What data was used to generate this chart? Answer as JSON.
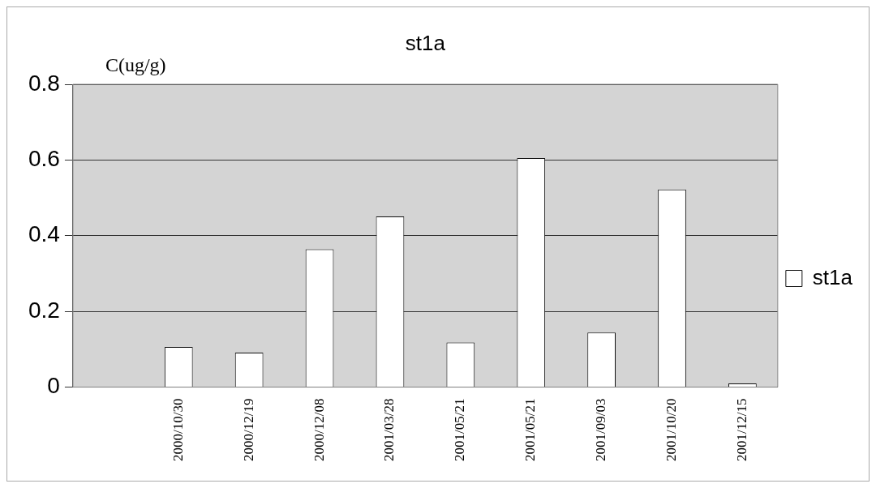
{
  "chart_data": {
    "type": "bar",
    "title": "st1a",
    "ylabel": "C(ug/g)",
    "categories": [
      null,
      "2000/10/30",
      "2000/12/19",
      "2000/12/08",
      "2001/03/28",
      "2001/05/21",
      "2001/05/21",
      "2001/09/03",
      "2001/10/20",
      "2001/12/15"
    ],
    "series": [
      {
        "name": "st1a",
        "color": "#ffffff",
        "values": [
          null,
          0.106,
          0.091,
          0.364,
          0.451,
          0.118,
          0.605,
          0.144,
          0.522,
          0.01
        ]
      }
    ],
    "ylim": [
      0,
      0.8
    ],
    "yticks": [
      0,
      0.2,
      0.4,
      0.6,
      0.8
    ],
    "grid": "y",
    "legend": "right"
  }
}
